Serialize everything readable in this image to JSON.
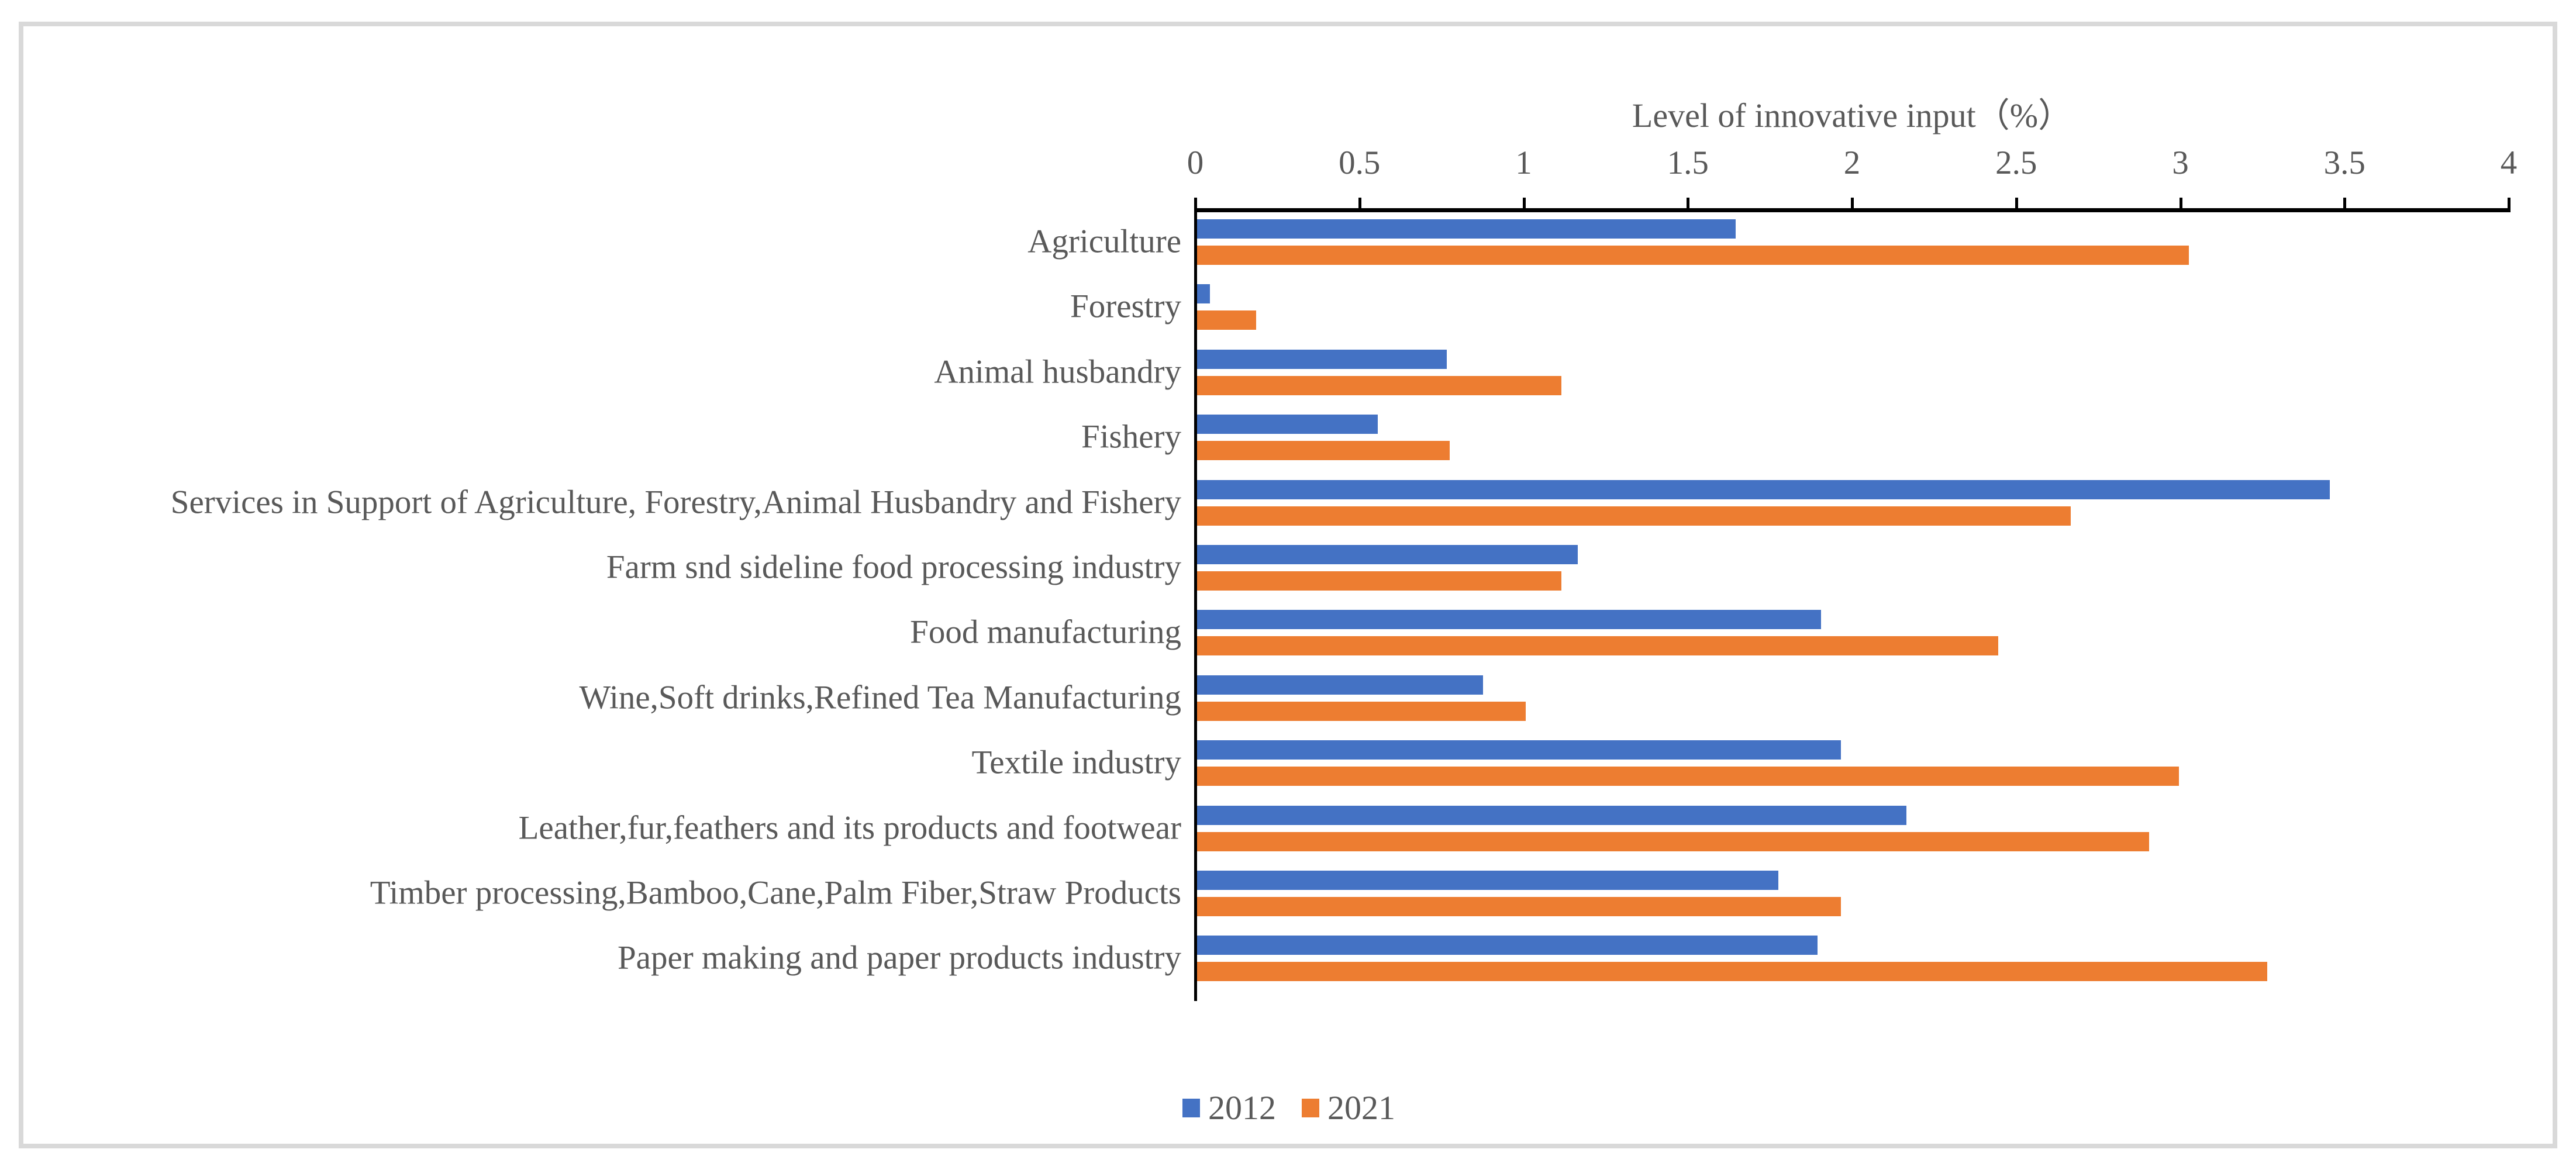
{
  "chart_data": {
    "type": "bar",
    "orientation": "horizontal",
    "title": "Level of innovative input（%）",
    "categories": [
      "Agriculture",
      "Forestry",
      "Animal husbandry",
      "Fishery",
      "Services in Support of Agriculture, Forestry,Animal Husbandry and Fishery",
      "Farm snd sideline food processing industry",
      "Food manufacturing",
      "Wine,Soft drinks,Refined Tea Manufacturing",
      "Textile industry",
      "Leather,fur,feathers and its products and footwear",
      "Timber processing,Bamboo,Cane,Palm Fiber,Straw Products",
      "Paper making and paper products industry"
    ],
    "series": [
      {
        "name": "2012",
        "color": "#4472C4",
        "values": [
          1.64,
          0.04,
          0.76,
          0.55,
          3.45,
          1.16,
          1.9,
          0.87,
          1.96,
          2.16,
          1.77,
          1.89
        ]
      },
      {
        "name": "2021",
        "color": "#ED7D31",
        "values": [
          3.02,
          0.18,
          1.11,
          0.77,
          2.66,
          1.11,
          2.44,
          1.0,
          2.99,
          2.9,
          1.96,
          3.26
        ]
      }
    ],
    "x_axis": {
      "min": 0,
      "max": 4,
      "tick_step": 0.5,
      "tick_labels": [
        "0",
        "0.5",
        "1",
        "1.5",
        "2",
        "2.5",
        "3",
        "3.5",
        "4"
      ]
    },
    "legend_position": "bottom",
    "grid": false
  },
  "colors": {
    "axis_line": "#000000",
    "text": "#595959",
    "frame_border": "#D9D9D9",
    "background": "#FFFFFF"
  }
}
